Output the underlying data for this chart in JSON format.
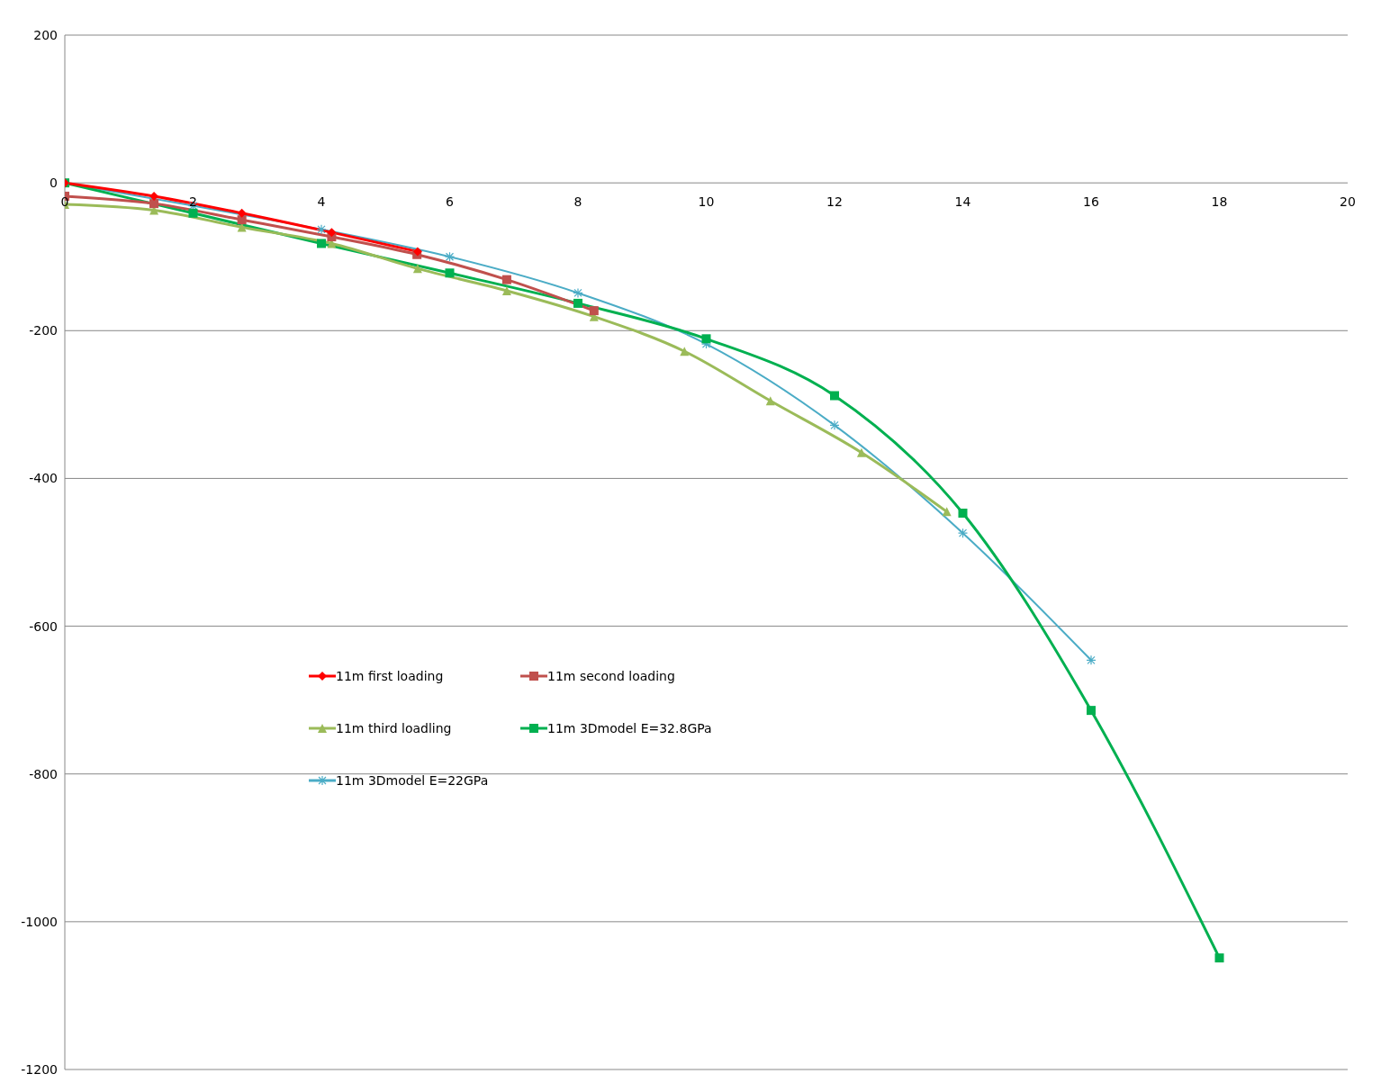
{
  "chart_data": {
    "type": "line",
    "xlim": [
      0,
      20
    ],
    "xticks": [
      0,
      2,
      4,
      6,
      8,
      10,
      12,
      14,
      16,
      18,
      20
    ],
    "ylim": [
      -1200,
      200
    ],
    "yticks": [
      -1200,
      -1000,
      -800,
      -600,
      -400,
      -200,
      0,
      200
    ],
    "grid": "y",
    "legend": "left",
    "series": [
      {
        "name": "11m first loading",
        "color": "#ff0000",
        "marker": "diamond",
        "x": [
          0,
          1.39,
          2.76,
          4.16,
          5.5
        ],
        "values": [
          0,
          -18,
          -41,
          -67,
          -93
        ]
      },
      {
        "name": "11m second loading",
        "color": "#c0504d",
        "marker": "square",
        "x": [
          0,
          1.39,
          2.76,
          4.16,
          5.49,
          6.89,
          8.25
        ],
        "values": [
          -18,
          -28,
          -50,
          -73,
          -97,
          -131,
          -173
        ]
      },
      {
        "name": "11m third loadling",
        "color": "#9bbb59",
        "marker": "triangle",
        "x": [
          0,
          1.39,
          2.76,
          4.16,
          5.5,
          6.89,
          8.25,
          9.66,
          11.0,
          12.42,
          13.75
        ],
        "values": [
          -29,
          -37,
          -60,
          -82,
          -116,
          -146,
          -181,
          -228,
          -295,
          -365,
          -445
        ]
      },
      {
        "name": "11m 3Dmodel E=32.8GPa",
        "color": "#00b050",
        "marker": "square",
        "x": [
          0,
          2,
          4,
          6,
          8,
          10,
          12,
          14,
          16,
          18
        ],
        "values": [
          0,
          -41,
          -82,
          -122,
          -163,
          -211,
          -288,
          -447,
          -714,
          -1049
        ]
      },
      {
        "name": "11m 3Dmodel E=22GPa",
        "color": "#4bacc6",
        "marker": "cross",
        "x": [
          0,
          2,
          4,
          6,
          8,
          10,
          12,
          14,
          16
        ],
        "values": [
          0,
          -31,
          -63,
          -100,
          -149,
          -218,
          -328,
          -474,
          -646
        ]
      }
    ]
  }
}
